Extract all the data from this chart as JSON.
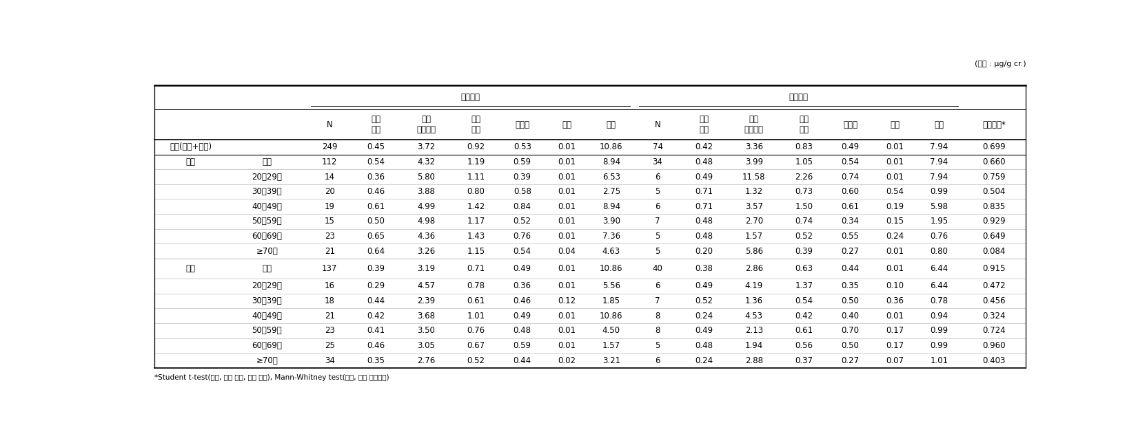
{
  "unit_text": "(단위 : μg/g cr.)",
  "footnote": "*Student t-test(전체, 남자 전체, 여자 전체), Mann-Whitney test(남자, 여자 연령군별)",
  "exp_header": "노출지역",
  "ctrl_header": "대조지역",
  "header_labels": [
    "N",
    "기하\n평균",
    "기하\n표준편차",
    "산술\n평균",
    "중위수",
    "최소",
    "최대",
    "N",
    "기하\n평균",
    "기하\n표준편차",
    "산술\n평균",
    "중위수",
    "최소",
    "최대",
    "유의수준*"
  ],
  "rows": [
    {
      "style": "total",
      "label1": "전체(남자+여자)",
      "label2": "",
      "vals": [
        "249",
        "0.45",
        "3.72",
        "0.92",
        "0.53",
        "0.01",
        "10.86",
        "74",
        "0.42",
        "3.36",
        "0.83",
        "0.49",
        "0.01",
        "7.94",
        "0.699"
      ]
    },
    {
      "style": "group_main",
      "label1": "남자",
      "label2": "전체",
      "vals": [
        "112",
        "0.54",
        "4.32",
        "1.19",
        "0.59",
        "0.01",
        "8.94",
        "34",
        "0.48",
        "3.99",
        "1.05",
        "0.54",
        "0.01",
        "7.94",
        "0.660"
      ]
    },
    {
      "style": "sub",
      "label1": "",
      "label2": "20～29세",
      "vals": [
        "14",
        "0.36",
        "5.80",
        "1.11",
        "0.39",
        "0.01",
        "6.53",
        "6",
        "0.49",
        "11.58",
        "2.26",
        "0.74",
        "0.01",
        "7.94",
        "0.759"
      ]
    },
    {
      "style": "sub",
      "label1": "",
      "label2": "30～39세",
      "vals": [
        "20",
        "0.46",
        "3.88",
        "0.80",
        "0.58",
        "0.01",
        "2.75",
        "5",
        "0.71",
        "1.32",
        "0.73",
        "0.60",
        "0.54",
        "0.99",
        "0.504"
      ]
    },
    {
      "style": "sub",
      "label1": "",
      "label2": "40～49세",
      "vals": [
        "19",
        "0.61",
        "4.99",
        "1.42",
        "0.84",
        "0.01",
        "8.94",
        "6",
        "0.71",
        "3.57",
        "1.50",
        "0.61",
        "0.19",
        "5.98",
        "0.835"
      ]
    },
    {
      "style": "sub",
      "label1": "",
      "label2": "50～59세",
      "vals": [
        "15",
        "0.50",
        "4.98",
        "1.17",
        "0.52",
        "0.01",
        "3.90",
        "7",
        "0.48",
        "2.70",
        "0.74",
        "0.34",
        "0.15",
        "1.95",
        "0.929"
      ]
    },
    {
      "style": "sub",
      "label1": "",
      "label2": "60～69세",
      "vals": [
        "23",
        "0.65",
        "4.36",
        "1.43",
        "0.76",
        "0.01",
        "7.36",
        "5",
        "0.48",
        "1.57",
        "0.52",
        "0.55",
        "0.24",
        "0.76",
        "0.649"
      ]
    },
    {
      "style": "sub_last",
      "label1": "",
      "label2": "≥70세",
      "vals": [
        "21",
        "0.64",
        "3.26",
        "1.15",
        "0.54",
        "0.04",
        "4.63",
        "5",
        "0.20",
        "5.86",
        "0.39",
        "0.27",
        "0.01",
        "0.80",
        "0.084"
      ]
    },
    {
      "style": "group_main2",
      "label1": "여자",
      "label2": "전체",
      "vals": [
        "137",
        "0.39",
        "3.19",
        "0.71",
        "0.49",
        "0.01",
        "10.86",
        "40",
        "0.38",
        "2.86",
        "0.63",
        "0.44",
        "0.01",
        "6.44",
        "0.915"
      ]
    },
    {
      "style": "sub",
      "label1": "",
      "label2": "20～29세",
      "vals": [
        "16",
        "0.29",
        "4.57",
        "0.78",
        "0.36",
        "0.01",
        "5.56",
        "6",
        "0.49",
        "4.19",
        "1.37",
        "0.35",
        "0.10",
        "6.44",
        "0.472"
      ]
    },
    {
      "style": "sub",
      "label1": "",
      "label2": "30～39세",
      "vals": [
        "18",
        "0.44",
        "2.39",
        "0.61",
        "0.46",
        "0.12",
        "1.85",
        "7",
        "0.52",
        "1.36",
        "0.54",
        "0.50",
        "0.36",
        "0.78",
        "0.456"
      ]
    },
    {
      "style": "sub",
      "label1": "",
      "label2": "40～49세",
      "vals": [
        "21",
        "0.42",
        "3.68",
        "1.01",
        "0.49",
        "0.01",
        "10.86",
        "8",
        "0.24",
        "4.53",
        "0.42",
        "0.40",
        "0.01",
        "0.94",
        "0.324"
      ]
    },
    {
      "style": "sub",
      "label1": "",
      "label2": "50～59세",
      "vals": [
        "23",
        "0.41",
        "3.50",
        "0.76",
        "0.48",
        "0.01",
        "4.50",
        "8",
        "0.49",
        "2.13",
        "0.61",
        "0.70",
        "0.17",
        "0.99",
        "0.724"
      ]
    },
    {
      "style": "sub",
      "label1": "",
      "label2": "60～69세",
      "vals": [
        "25",
        "0.46",
        "3.05",
        "0.67",
        "0.59",
        "0.01",
        "1.57",
        "5",
        "0.48",
        "1.94",
        "0.56",
        "0.50",
        "0.17",
        "0.99",
        "0.960"
      ]
    },
    {
      "style": "sub_last",
      "label1": "",
      "label2": "≥70세",
      "vals": [
        "34",
        "0.35",
        "2.76",
        "0.52",
        "0.44",
        "0.02",
        "3.21",
        "6",
        "0.24",
        "2.88",
        "0.37",
        "0.27",
        "0.07",
        "1.01",
        "0.403"
      ]
    }
  ],
  "background_color": "#ffffff",
  "line_color": "#000000",
  "text_color": "#000000",
  "font_size_data": 8.5,
  "font_size_header": 8.5,
  "font_size_unit": 8.0
}
